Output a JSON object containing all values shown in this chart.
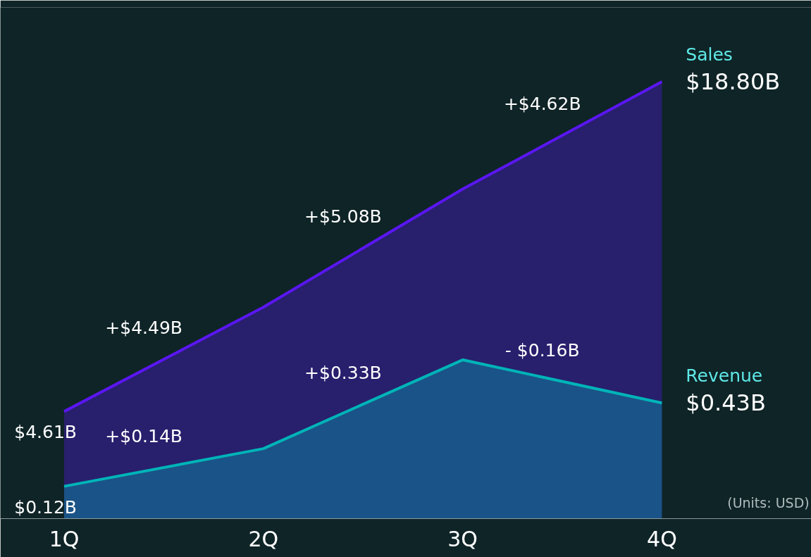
{
  "chart_data": {
    "type": "area",
    "categories": [
      "1Q",
      "2Q",
      "3Q",
      "4Q"
    ],
    "series": [
      {
        "name": "Sales",
        "color": "#5a16f2",
        "values": [
          4.61,
          9.1,
          14.18,
          18.8
        ],
        "value_labels": [
          "$4.61B",
          null,
          null,
          "$18.80B"
        ]
      },
      {
        "name": "Revenue",
        "color": "#00b4b8",
        "axis": "y2",
        "values": [
          0.12,
          0.26,
          0.59,
          0.43
        ],
        "value_labels": [
          "$0.12B",
          null,
          null,
          "$0.43B"
        ]
      }
    ],
    "ylim": [
      0,
      22
    ],
    "y2lim": [
      0,
      1.9
    ],
    "tick_labels": "x",
    "grid": false,
    "annotations": [
      "+$4.49B",
      "+$5.08B",
      "+$4.62B",
      "+$0.14B",
      "+$0.33B",
      "- $0.16B",
      "(Units: USD)"
    ]
  }
}
